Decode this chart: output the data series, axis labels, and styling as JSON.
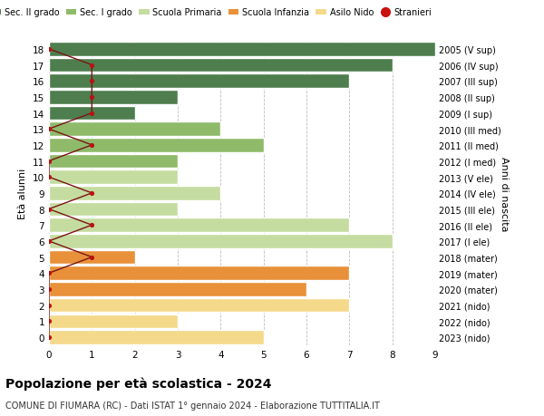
{
  "ages": [
    0,
    1,
    2,
    3,
    4,
    5,
    6,
    7,
    8,
    9,
    10,
    11,
    12,
    13,
    14,
    15,
    16,
    17,
    18
  ],
  "right_labels": [
    "2023 (nido)",
    "2022 (nido)",
    "2021 (nido)",
    "2020 (mater)",
    "2019 (mater)",
    "2018 (mater)",
    "2017 (I ele)",
    "2016 (II ele)",
    "2015 (III ele)",
    "2014 (IV ele)",
    "2013 (V ele)",
    "2012 (I med)",
    "2011 (II med)",
    "2010 (III med)",
    "2009 (I sup)",
    "2008 (II sup)",
    "2007 (III sup)",
    "2006 (IV sup)",
    "2005 (V sup)"
  ],
  "bar_values": [
    5,
    3,
    7,
    6,
    7,
    2,
    8,
    7,
    3,
    4,
    3,
    3,
    5,
    4,
    2,
    3,
    7,
    8,
    9
  ],
  "bar_colors": [
    "#f5d98b",
    "#f5d98b",
    "#f5d98b",
    "#e8913a",
    "#e8913a",
    "#e8913a",
    "#c5dca0",
    "#c5dca0",
    "#c5dca0",
    "#c5dca0",
    "#c5dca0",
    "#8fba6a",
    "#8fba6a",
    "#8fba6a",
    "#4e7e4e",
    "#4e7e4e",
    "#4e7e4e",
    "#4e7e4e",
    "#4e7e4e"
  ],
  "stranieri_values": [
    0,
    0,
    0,
    0,
    0,
    1,
    0,
    1,
    0,
    1,
    0,
    0,
    1,
    0,
    1,
    1,
    1,
    1,
    0
  ],
  "xlim": [
    0,
    9
  ],
  "title_bold": "Popolazione per età scolastica - 2024",
  "subtitle": "COMUNE DI FIUMARA (RC) - Dati ISTAT 1° gennaio 2024 - Elaborazione TUTTITALIA.IT",
  "ylabel": "Età alunni",
  "ylabel2": "Anni di nascita",
  "legend_labels": [
    "Sec. II grado",
    "Sec. I grado",
    "Scuola Primaria",
    "Scuola Infanzia",
    "Asilo Nido",
    "Stranieri"
  ],
  "legend_colors": [
    "#4e7e4e",
    "#8fba6a",
    "#c5dca0",
    "#e8913a",
    "#f5d98b",
    "#cc1111"
  ],
  "grid_color": "#bbbbbb",
  "bar_edge_color": "#ffffff",
  "stranieri_line_color": "#7a1515",
  "stranieri_dot_color": "#bb1111"
}
